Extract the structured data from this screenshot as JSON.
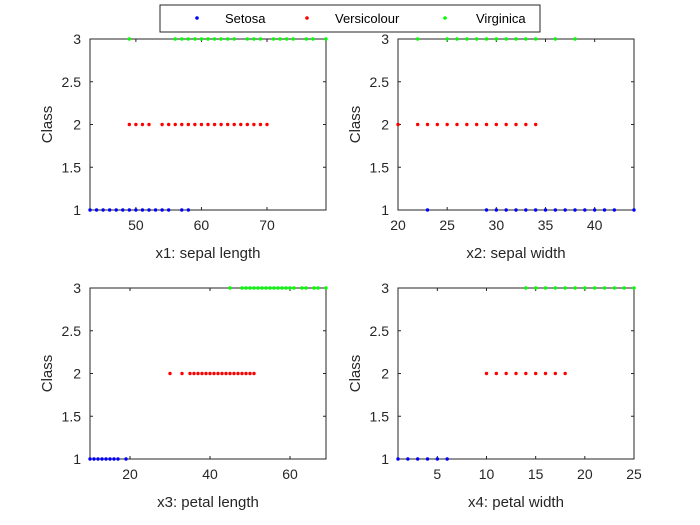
{
  "chart_data": {
    "type": "scatter",
    "legend": {
      "placement": "top",
      "entries": [
        {
          "name": "Setosa",
          "color": "#0000ff"
        },
        {
          "name": "Versicolour",
          "color": "#ff0000"
        },
        {
          "name": "Virginica",
          "color": "#00ff00"
        }
      ]
    },
    "subplots": [
      {
        "xlabel": "x1: sepal length",
        "ylabel": "Class",
        "xlim": [
          43,
          79
        ],
        "ylim": [
          1,
          3
        ],
        "xticks": [
          50,
          60,
          70
        ],
        "yticks": [
          1,
          1.5,
          2,
          2.5,
          3
        ],
        "series": [
          {
            "name": "Setosa",
            "y": 1,
            "x": [
              43,
              44,
              45,
              46,
              47,
              48,
              49,
              50,
              51,
              52,
              53,
              54,
              55,
              57,
              58
            ]
          },
          {
            "name": "Versicolour",
            "y": 2,
            "x": [
              49,
              50,
              51,
              52,
              54,
              55,
              56,
              57,
              58,
              59,
              60,
              61,
              62,
              63,
              64,
              65,
              66,
              67,
              68,
              69,
              70
            ]
          },
          {
            "name": "Virginica",
            "y": 3,
            "x": [
              49,
              56,
              57,
              58,
              59,
              60,
              61,
              62,
              63,
              64,
              65,
              67,
              68,
              69,
              71,
              72,
              73,
              74,
              76,
              77,
              79
            ]
          }
        ]
      },
      {
        "xlabel": "x2: sepal width",
        "ylabel": "Class",
        "xlim": [
          20,
          44
        ],
        "ylim": [
          1,
          3
        ],
        "xticks": [
          20,
          25,
          30,
          35,
          40
        ],
        "yticks": [
          1,
          1.5,
          2,
          2.5,
          3
        ],
        "series": [
          {
            "name": "Setosa",
            "y": 1,
            "x": [
              23,
              29,
              30,
              31,
              32,
              33,
              34,
              35,
              36,
              37,
              38,
              39,
              40,
              41,
              42,
              44
            ]
          },
          {
            "name": "Versicolour",
            "y": 2,
            "x": [
              20,
              22,
              23,
              24,
              25,
              26,
              27,
              28,
              29,
              30,
              31,
              32,
              33,
              34
            ]
          },
          {
            "name": "Virginica",
            "y": 3,
            "x": [
              22,
              25,
              26,
              27,
              28,
              29,
              30,
              31,
              32,
              33,
              34,
              36,
              38
            ]
          }
        ]
      },
      {
        "xlabel": "x3: petal length",
        "ylabel": "Class",
        "xlim": [
          10,
          69
        ],
        "ylim": [
          1,
          3
        ],
        "xticks": [
          20,
          40,
          60
        ],
        "yticks": [
          1,
          1.5,
          2,
          2.5,
          3
        ],
        "series": [
          {
            "name": "Setosa",
            "y": 1,
            "x": [
              10,
              11,
              12,
              13,
              14,
              15,
              16,
              17,
              19
            ]
          },
          {
            "name": "Versicolour",
            "y": 2,
            "x": [
              30,
              33,
              35,
              36,
              37,
              38,
              39,
              40,
              41,
              42,
              43,
              44,
              45,
              46,
              47,
              48,
              49,
              50,
              51
            ]
          },
          {
            "name": "Virginica",
            "y": 3,
            "x": [
              45,
              48,
              49,
              50,
              51,
              52,
              53,
              54,
              55,
              56,
              57,
              58,
              59,
              60,
              61,
              63,
              64,
              66,
              67,
              69
            ]
          }
        ]
      },
      {
        "xlabel": "x4: petal width",
        "ylabel": "Class",
        "xlim": [
          1,
          25
        ],
        "ylim": [
          1,
          3
        ],
        "xticks": [
          5,
          10,
          15,
          20,
          25
        ],
        "yticks": [
          1,
          1.5,
          2,
          2.5,
          3
        ],
        "series": [
          {
            "name": "Setosa",
            "y": 1,
            "x": [
              1,
              2,
              3,
              4,
              5,
              6
            ]
          },
          {
            "name": "Versicolour",
            "y": 2,
            "x": [
              10,
              11,
              12,
              13,
              14,
              15,
              16,
              17,
              18
            ]
          },
          {
            "name": "Virginica",
            "y": 3,
            "x": [
              14,
              15,
              16,
              17,
              18,
              19,
              20,
              21,
              22,
              23,
              24,
              25
            ]
          }
        ]
      }
    ]
  }
}
